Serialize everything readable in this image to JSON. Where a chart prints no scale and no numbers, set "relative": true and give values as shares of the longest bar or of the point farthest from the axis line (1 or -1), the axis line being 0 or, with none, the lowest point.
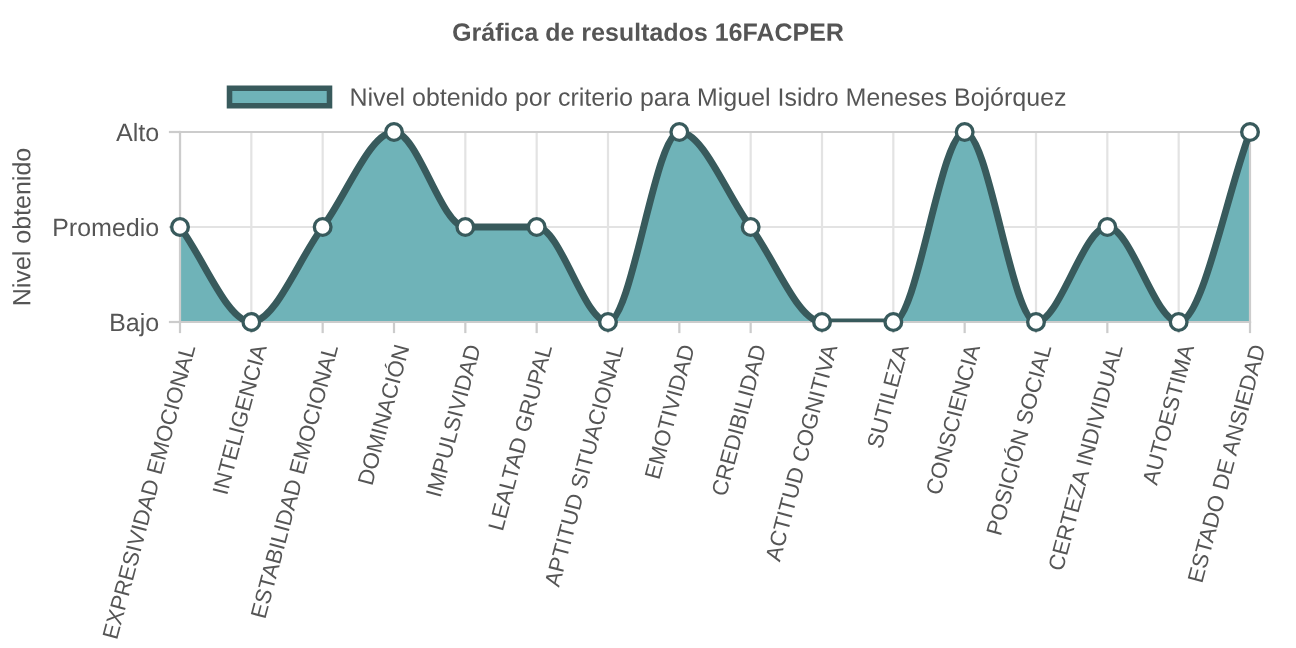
{
  "chart_data": {
    "type": "area",
    "title": "Gráfica de resultados 16FACPER",
    "ylabel": "Nivel obtenido",
    "categories": [
      "EXPRESIVIDAD EMOCIONAL",
      "INTELIGENCIA",
      "ESTABILIDAD EMOCIONAL",
      "DOMINACIÓN",
      "IMPULSIVIDAD",
      "LEALTAD GRUPAL",
      "APTITUD SITUACIONAL",
      "EMOTIVIDAD",
      "CREDIBILIDAD",
      "ACTITUD COGNITIVA",
      "SUTILEZA",
      "CONSCIENCIA",
      "POSICIÓN SOCIAL",
      "CERTEZA INDIVIDUAL",
      "AUTOESTIMA",
      "ESTADO DE ANSIEDAD"
    ],
    "series": [
      {
        "name": "Nivel obtenido por criterio para Miguel Isidro Meneses Bojórquez",
        "color": "#6fb3b8",
        "values": [
          0.5,
          0,
          0.5,
          1,
          0.5,
          0.5,
          0,
          1,
          0.5,
          0,
          0,
          1,
          0,
          0.5,
          0,
          1
        ]
      }
    ],
    "relative": true,
    "y_categories": [
      "Alto",
      "Promedio",
      "Bajo"
    ],
    "grid": true,
    "legend": "top",
    "marker": "circle",
    "line_style": "solid"
  }
}
